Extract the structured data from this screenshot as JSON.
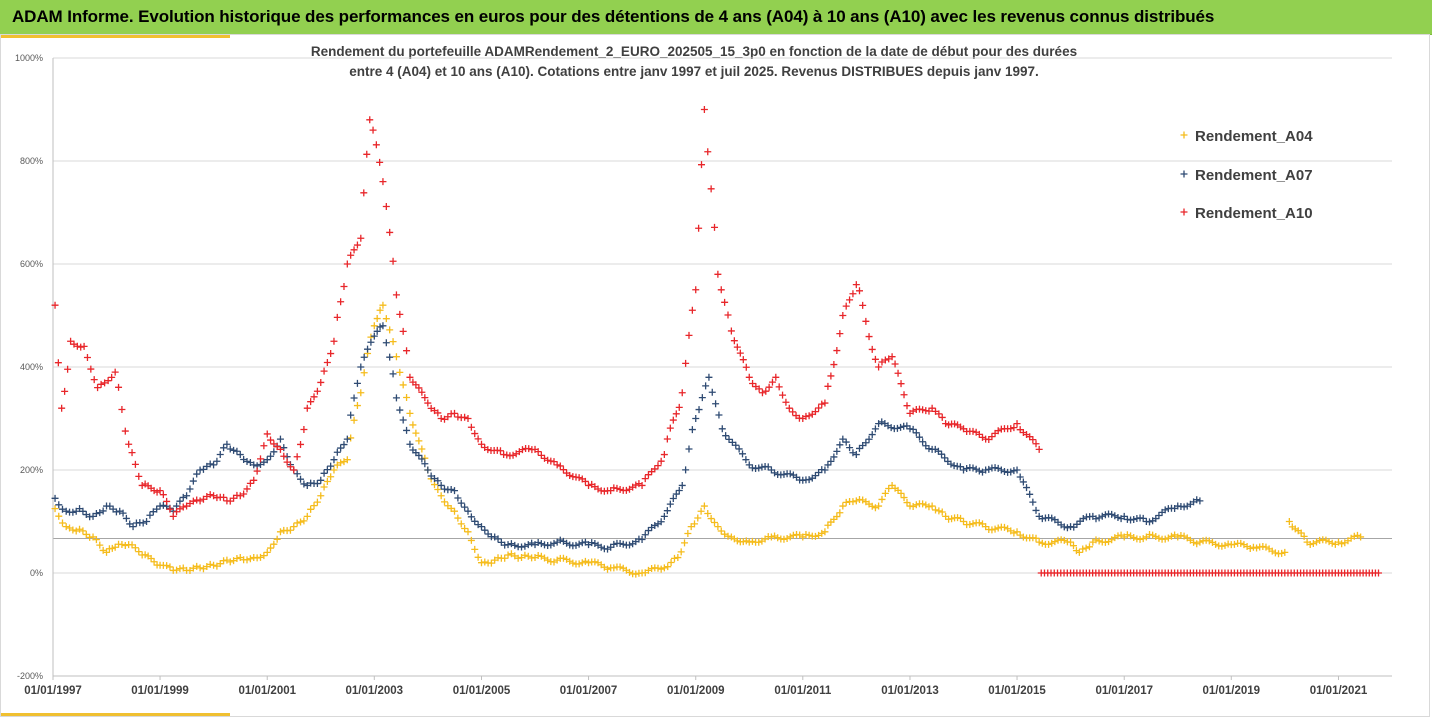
{
  "header": {
    "title": "ADAM Informe. Evolution historique des performances en euros pour des détentions de 4 ans (A04) à 10 ans (A10) avec les revenus connus distribués"
  },
  "chart_data": {
    "type": "scatter",
    "title_line1": "Rendement du portefeuille ADAMRendement_2_EURO_202505_15_3p0  en fonction de la date de début pour des durées",
    "title_line2": "entre 4 (A04) et 10 ans (A10). Cotations entre janv 1997 et juil 2025. Revenus DISTRIBUES depuis janv 1997.",
    "ylim": [
      -200,
      1000
    ],
    "y_ticks": [
      -200,
      0,
      200,
      400,
      600,
      800,
      1000
    ],
    "y_tick_labels": [
      "-200%",
      "0%",
      "200%",
      "400%",
      "600%",
      "800%",
      "1000%"
    ],
    "x_range": [
      "1997-01-01",
      "2022-01-01"
    ],
    "x_tick_labels": [
      "01/01/1997",
      "01/01/1999",
      "01/01/2001",
      "01/01/2003",
      "01/01/2005",
      "01/01/2007",
      "01/01/2009",
      "01/01/2011",
      "01/01/2013",
      "01/01/2015",
      "01/01/2017",
      "01/01/2019",
      "01/01/2021"
    ],
    "x_tick_dates": [
      "1997-01-01",
      "1999-01-01",
      "2001-01-01",
      "2003-01-01",
      "2005-01-01",
      "2007-01-01",
      "2009-01-01",
      "2011-01-01",
      "2013-01-01",
      "2015-01-01",
      "2017-01-01",
      "2019-01-01",
      "2021-01-01"
    ],
    "reference_line_y": 67,
    "grid": true,
    "legend_position": "top-right",
    "marker": "+",
    "series": [
      {
        "name": "Rendement_A04",
        "color": "#f5bc1c",
        "points": [
          [
            "1997-01-15",
            125
          ],
          [
            "1997-04-01",
            90
          ],
          [
            "1997-07-01",
            85
          ],
          [
            "1997-10-01",
            70
          ],
          [
            "1998-01-01",
            40
          ],
          [
            "1998-03-01",
            50
          ],
          [
            "1998-06-01",
            55
          ],
          [
            "1998-09-01",
            35
          ],
          [
            "1999-01-01",
            15
          ],
          [
            "1999-04-01",
            5
          ],
          [
            "1999-07-01",
            5
          ],
          [
            "1999-10-01",
            10
          ],
          [
            "2000-01-01",
            15
          ],
          [
            "2000-04-01",
            25
          ],
          [
            "2000-07-01",
            30
          ],
          [
            "2000-10-01",
            30
          ],
          [
            "2001-01-01",
            40
          ],
          [
            "2001-04-01",
            80
          ],
          [
            "2001-07-01",
            90
          ],
          [
            "2001-10-01",
            110
          ],
          [
            "2002-01-01",
            150
          ],
          [
            "2002-04-01",
            200
          ],
          [
            "2002-07-01",
            220
          ],
          [
            "2002-10-01",
            350
          ],
          [
            "2003-01-01",
            480
          ],
          [
            "2003-03-01",
            520
          ],
          [
            "2003-06-01",
            420
          ],
          [
            "2003-09-01",
            310
          ],
          [
            "2004-01-01",
            200
          ],
          [
            "2004-04-01",
            150
          ],
          [
            "2004-07-01",
            120
          ],
          [
            "2004-10-01",
            80
          ],
          [
            "2005-01-01",
            20
          ],
          [
            "2005-04-01",
            25
          ],
          [
            "2005-07-01",
            35
          ],
          [
            "2005-10-01",
            30
          ],
          [
            "2006-01-01",
            30
          ],
          [
            "2006-06-01",
            25
          ],
          [
            "2007-01-01",
            20
          ],
          [
            "2007-06-01",
            10
          ],
          [
            "2008-01-01",
            0
          ],
          [
            "2008-06-01",
            10
          ],
          [
            "2008-09-01",
            30
          ],
          [
            "2008-12-01",
            90
          ],
          [
            "2009-03-01",
            130
          ],
          [
            "2009-06-01",
            90
          ],
          [
            "2009-09-01",
            70
          ],
          [
            "2010-01-01",
            60
          ],
          [
            "2010-06-01",
            70
          ],
          [
            "2011-01-01",
            70
          ],
          [
            "2011-06-01",
            80
          ],
          [
            "2011-10-01",
            130
          ],
          [
            "2012-01-01",
            140
          ],
          [
            "2012-06-01",
            130
          ],
          [
            "2012-09-01",
            170
          ],
          [
            "2013-01-01",
            130
          ],
          [
            "2013-06-01",
            130
          ],
          [
            "2013-09-01",
            110
          ],
          [
            "2014-01-01",
            100
          ],
          [
            "2014-06-01",
            90
          ],
          [
            "2015-01-01",
            80
          ],
          [
            "2015-06-01",
            60
          ],
          [
            "2016-01-01",
            60
          ],
          [
            "2016-03-01",
            40
          ],
          [
            "2016-06-01",
            60
          ],
          [
            "2017-01-01",
            70
          ],
          [
            "2017-06-01",
            70
          ],
          [
            "2018-01-01",
            70
          ],
          [
            "2018-06-01",
            60
          ],
          [
            "2019-01-01",
            55
          ],
          [
            "2019-06-01",
            50
          ],
          [
            "2020-01-01",
            40
          ],
          [
            "2020-02-01",
            100
          ],
          [
            "2020-06-01",
            60
          ],
          [
            "2021-01-01",
            60
          ],
          [
            "2021-06-01",
            70
          ]
        ]
      },
      {
        "name": "Rendement_A07",
        "color": "#2f4b73",
        "points": [
          [
            "1997-01-15",
            145
          ],
          [
            "1997-04-01",
            120
          ],
          [
            "1997-07-01",
            125
          ],
          [
            "1997-10-01",
            110
          ],
          [
            "1998-01-01",
            130
          ],
          [
            "1998-04-01",
            120
          ],
          [
            "1998-07-01",
            90
          ],
          [
            "1998-10-01",
            100
          ],
          [
            "1999-01-01",
            130
          ],
          [
            "1999-04-01",
            120
          ],
          [
            "1999-07-01",
            150
          ],
          [
            "1999-10-01",
            200
          ],
          [
            "2000-01-01",
            210
          ],
          [
            "2000-04-01",
            250
          ],
          [
            "2000-07-01",
            230
          ],
          [
            "2000-10-01",
            210
          ],
          [
            "2001-01-01",
            220
          ],
          [
            "2001-04-01",
            260
          ],
          [
            "2001-07-01",
            200
          ],
          [
            "2001-10-01",
            170
          ],
          [
            "2002-01-01",
            180
          ],
          [
            "2002-04-01",
            220
          ],
          [
            "2002-07-01",
            260
          ],
          [
            "2002-10-01",
            400
          ],
          [
            "2003-01-01",
            460
          ],
          [
            "2003-03-01",
            480
          ],
          [
            "2003-06-01",
            340
          ],
          [
            "2003-09-01",
            250
          ],
          [
            "2004-01-01",
            200
          ],
          [
            "2004-04-01",
            170
          ],
          [
            "2004-07-01",
            160
          ],
          [
            "2004-10-01",
            120
          ],
          [
            "2005-01-01",
            90
          ],
          [
            "2005-04-01",
            70
          ],
          [
            "2005-07-01",
            55
          ],
          [
            "2006-01-01",
            55
          ],
          [
            "2006-06-01",
            60
          ],
          [
            "2007-01-01",
            55
          ],
          [
            "2007-06-01",
            50
          ],
          [
            "2008-01-01",
            65
          ],
          [
            "2008-06-01",
            110
          ],
          [
            "2008-10-01",
            170
          ],
          [
            "2009-01-01",
            300
          ],
          [
            "2009-04-01",
            380
          ],
          [
            "2009-07-01",
            280
          ],
          [
            "2010-01-01",
            210
          ],
          [
            "2010-06-01",
            200
          ],
          [
            "2011-01-01",
            180
          ],
          [
            "2011-06-01",
            200
          ],
          [
            "2011-10-01",
            260
          ],
          [
            "2012-01-01",
            230
          ],
          [
            "2012-06-01",
            290
          ],
          [
            "2013-01-01",
            280
          ],
          [
            "2013-06-01",
            240
          ],
          [
            "2014-01-01",
            200
          ],
          [
            "2014-06-01",
            200
          ],
          [
            "2015-01-01",
            200
          ],
          [
            "2015-06-01",
            110
          ],
          [
            "2016-01-01",
            90
          ],
          [
            "2016-06-01",
            110
          ],
          [
            "2017-01-01",
            110
          ],
          [
            "2017-06-01",
            100
          ],
          [
            "2018-01-01",
            130
          ],
          [
            "2018-06-01",
            140
          ]
        ]
      },
      {
        "name": "Rendement_A10",
        "color": "#e8262a",
        "points": [
          [
            "1997-01-15",
            520
          ],
          [
            "1997-03-01",
            320
          ],
          [
            "1997-05-01",
            450
          ],
          [
            "1997-08-01",
            440
          ],
          [
            "1997-11-01",
            360
          ],
          [
            "1998-03-01",
            390
          ],
          [
            "1998-06-01",
            250
          ],
          [
            "1998-09-01",
            170
          ],
          [
            "1999-01-01",
            160
          ],
          [
            "1999-04-01",
            110
          ],
          [
            "1999-07-01",
            130
          ],
          [
            "1999-10-01",
            140
          ],
          [
            "2000-01-01",
            150
          ],
          [
            "2000-04-01",
            140
          ],
          [
            "2000-07-01",
            150
          ],
          [
            "2000-10-01",
            180
          ],
          [
            "2001-01-01",
            270
          ],
          [
            "2001-04-01",
            240
          ],
          [
            "2001-07-01",
            200
          ],
          [
            "2001-10-01",
            320
          ],
          [
            "2002-01-01",
            370
          ],
          [
            "2002-04-01",
            450
          ],
          [
            "2002-07-01",
            600
          ],
          [
            "2002-10-01",
            650
          ],
          [
            "2002-12-01",
            880
          ],
          [
            "2003-03-01",
            760
          ],
          [
            "2003-06-01",
            540
          ],
          [
            "2003-09-01",
            380
          ],
          [
            "2004-01-01",
            330
          ],
          [
            "2004-04-01",
            300
          ],
          [
            "2004-07-01",
            310
          ],
          [
            "2004-10-01",
            300
          ],
          [
            "2005-01-01",
            250
          ],
          [
            "2005-06-01",
            230
          ],
          [
            "2006-01-01",
            240
          ],
          [
            "2006-06-01",
            210
          ],
          [
            "2007-01-01",
            170
          ],
          [
            "2007-06-01",
            160
          ],
          [
            "2008-01-01",
            170
          ],
          [
            "2008-06-01",
            230
          ],
          [
            "2008-10-01",
            350
          ],
          [
            "2009-01-01",
            550
          ],
          [
            "2009-03-01",
            900
          ],
          [
            "2009-06-01",
            580
          ],
          [
            "2009-09-01",
            470
          ],
          [
            "2010-01-01",
            380
          ],
          [
            "2010-04-01",
            350
          ],
          [
            "2010-07-01",
            380
          ],
          [
            "2010-10-01",
            320
          ],
          [
            "2011-01-01",
            300
          ],
          [
            "2011-06-01",
            330
          ],
          [
            "2011-10-01",
            500
          ],
          [
            "2012-01-01",
            560
          ],
          [
            "2012-06-01",
            400
          ],
          [
            "2012-09-01",
            420
          ],
          [
            "2013-01-01",
            310
          ],
          [
            "2013-06-01",
            320
          ],
          [
            "2013-09-01",
            290
          ],
          [
            "2014-01-01",
            280
          ],
          [
            "2014-06-01",
            260
          ],
          [
            "2015-01-01",
            290
          ],
          [
            "2015-06-01",
            240
          ],
          [
            "2015-06-15",
            0
          ],
          [
            "2016-01-01",
            0
          ],
          [
            "2017-01-01",
            0
          ],
          [
            "2018-01-01",
            0
          ],
          [
            "2019-01-01",
            0
          ],
          [
            "2020-01-01",
            0
          ],
          [
            "2021-01-01",
            0
          ],
          [
            "2021-10-01",
            0
          ]
        ]
      }
    ]
  }
}
